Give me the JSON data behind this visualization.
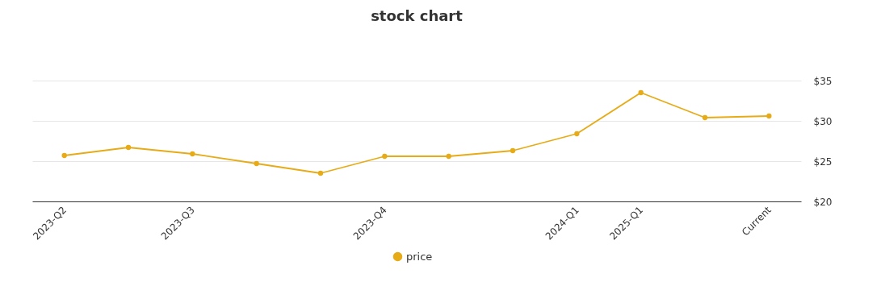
{
  "chart_data": {
    "type": "line",
    "title": "stock chart",
    "categories": [
      "2023-Q2",
      null,
      "2023-Q3",
      null,
      null,
      "2023-Q4",
      null,
      null,
      "2024-Q1",
      "2025-Q1",
      null,
      "Current"
    ],
    "series": [
      {
        "name": "price",
        "color": "#e6ab16",
        "values": [
          25.7,
          26.7,
          25.9,
          24.7,
          23.5,
          25.6,
          25.6,
          26.3,
          28.4,
          33.5,
          30.4,
          30.6
        ]
      }
    ],
    "ylim": [
      20,
      35
    ],
    "yticks": [
      {
        "value": 20,
        "label": "$20"
      },
      {
        "value": 25,
        "label": "$25"
      },
      {
        "value": 30,
        "label": "$30"
      },
      {
        "value": 35,
        "label": "$35"
      }
    ],
    "grid": "y",
    "legend": "bottom",
    "marker": "circle",
    "line_style": "solid"
  }
}
